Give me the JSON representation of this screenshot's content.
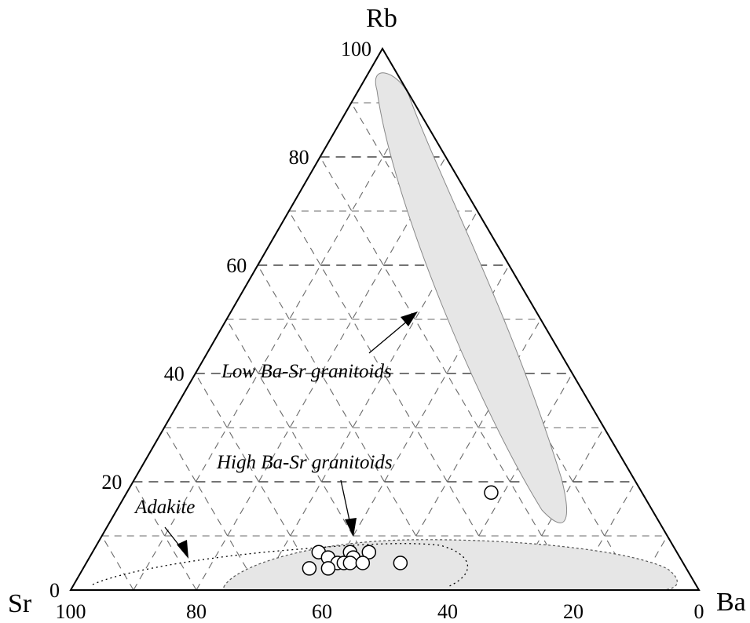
{
  "chart_data": {
    "type": "scatter",
    "subtype": "ternary",
    "axes": {
      "top": "Rb",
      "left": "Sr",
      "right": "Ba"
    },
    "rb_ticks": [
      "100",
      "80",
      "60",
      "40",
      "20",
      "0"
    ],
    "base_ticks": [
      "100",
      "80",
      "60",
      "40",
      "20",
      "0"
    ],
    "grid": true,
    "fields": [
      {
        "label": "Low Ba-Sr granitoids",
        "color": "#e6e6e6"
      },
      {
        "label": "High Ba-Sr granitoids",
        "color": "#e6e6e6"
      },
      {
        "label": "Adakite",
        "style": "dotted"
      }
    ],
    "points": [
      {
        "rb": 18,
        "ba": 58,
        "sr": 24
      },
      {
        "rb": 7,
        "ba": 36,
        "sr": 57
      },
      {
        "rb": 7,
        "ba": 41,
        "sr": 52
      },
      {
        "rb": 7,
        "ba": 44,
        "sr": 49
      },
      {
        "rb": 6,
        "ba": 38,
        "sr": 56
      },
      {
        "rb": 6,
        "ba": 42,
        "sr": 52
      },
      {
        "rb": 5,
        "ba": 40,
        "sr": 55
      },
      {
        "rb": 5,
        "ba": 41,
        "sr": 54
      },
      {
        "rb": 5,
        "ba": 42,
        "sr": 53
      },
      {
        "rb": 5,
        "ba": 44,
        "sr": 51
      },
      {
        "rb": 4,
        "ba": 36,
        "sr": 60
      },
      {
        "rb": 4,
        "ba": 39,
        "sr": 57
      },
      {
        "rb": 5,
        "ba": 50,
        "sr": 45
      }
    ],
    "point_style": {
      "fill": "#ffffff",
      "stroke": "#000000"
    }
  }
}
